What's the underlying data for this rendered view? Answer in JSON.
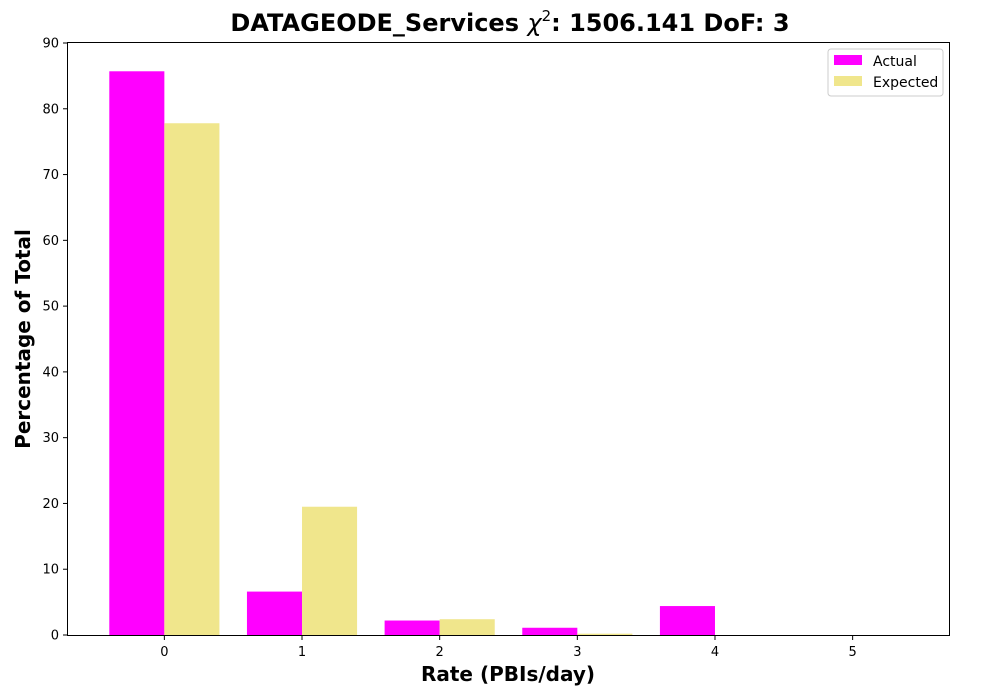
{
  "chart_data": {
    "type": "bar",
    "title_main": "DATAGEODE_Services ",
    "title_chi": "χ",
    "title_sup": "2",
    "title_rest": ": 1506.141 DoF: 3",
    "xlabel": "Rate (PBIs/day)",
    "ylabel": "Percentage of Total",
    "categories": [
      "0",
      "1",
      "2",
      "3",
      "4",
      "5"
    ],
    "x_ticks": [
      "0",
      "1",
      "2",
      "3",
      "4",
      "5"
    ],
    "y_ticks": [
      "0",
      "10",
      "20",
      "30",
      "40",
      "50",
      "60",
      "70",
      "80",
      "90"
    ],
    "ylim": [
      0,
      90
    ],
    "xlim": [
      -0.7,
      5.7
    ],
    "grid": false,
    "legend_position": "top-right",
    "series": [
      {
        "name": "Actual",
        "color": "#ff00ff",
        "values": [
          85.7,
          6.6,
          2.2,
          1.1,
          4.4,
          0.0
        ]
      },
      {
        "name": "Expected",
        "color": "#f0e68c",
        "values": [
          77.8,
          19.5,
          2.4,
          0.2,
          0.0,
          0.0
        ]
      }
    ]
  }
}
